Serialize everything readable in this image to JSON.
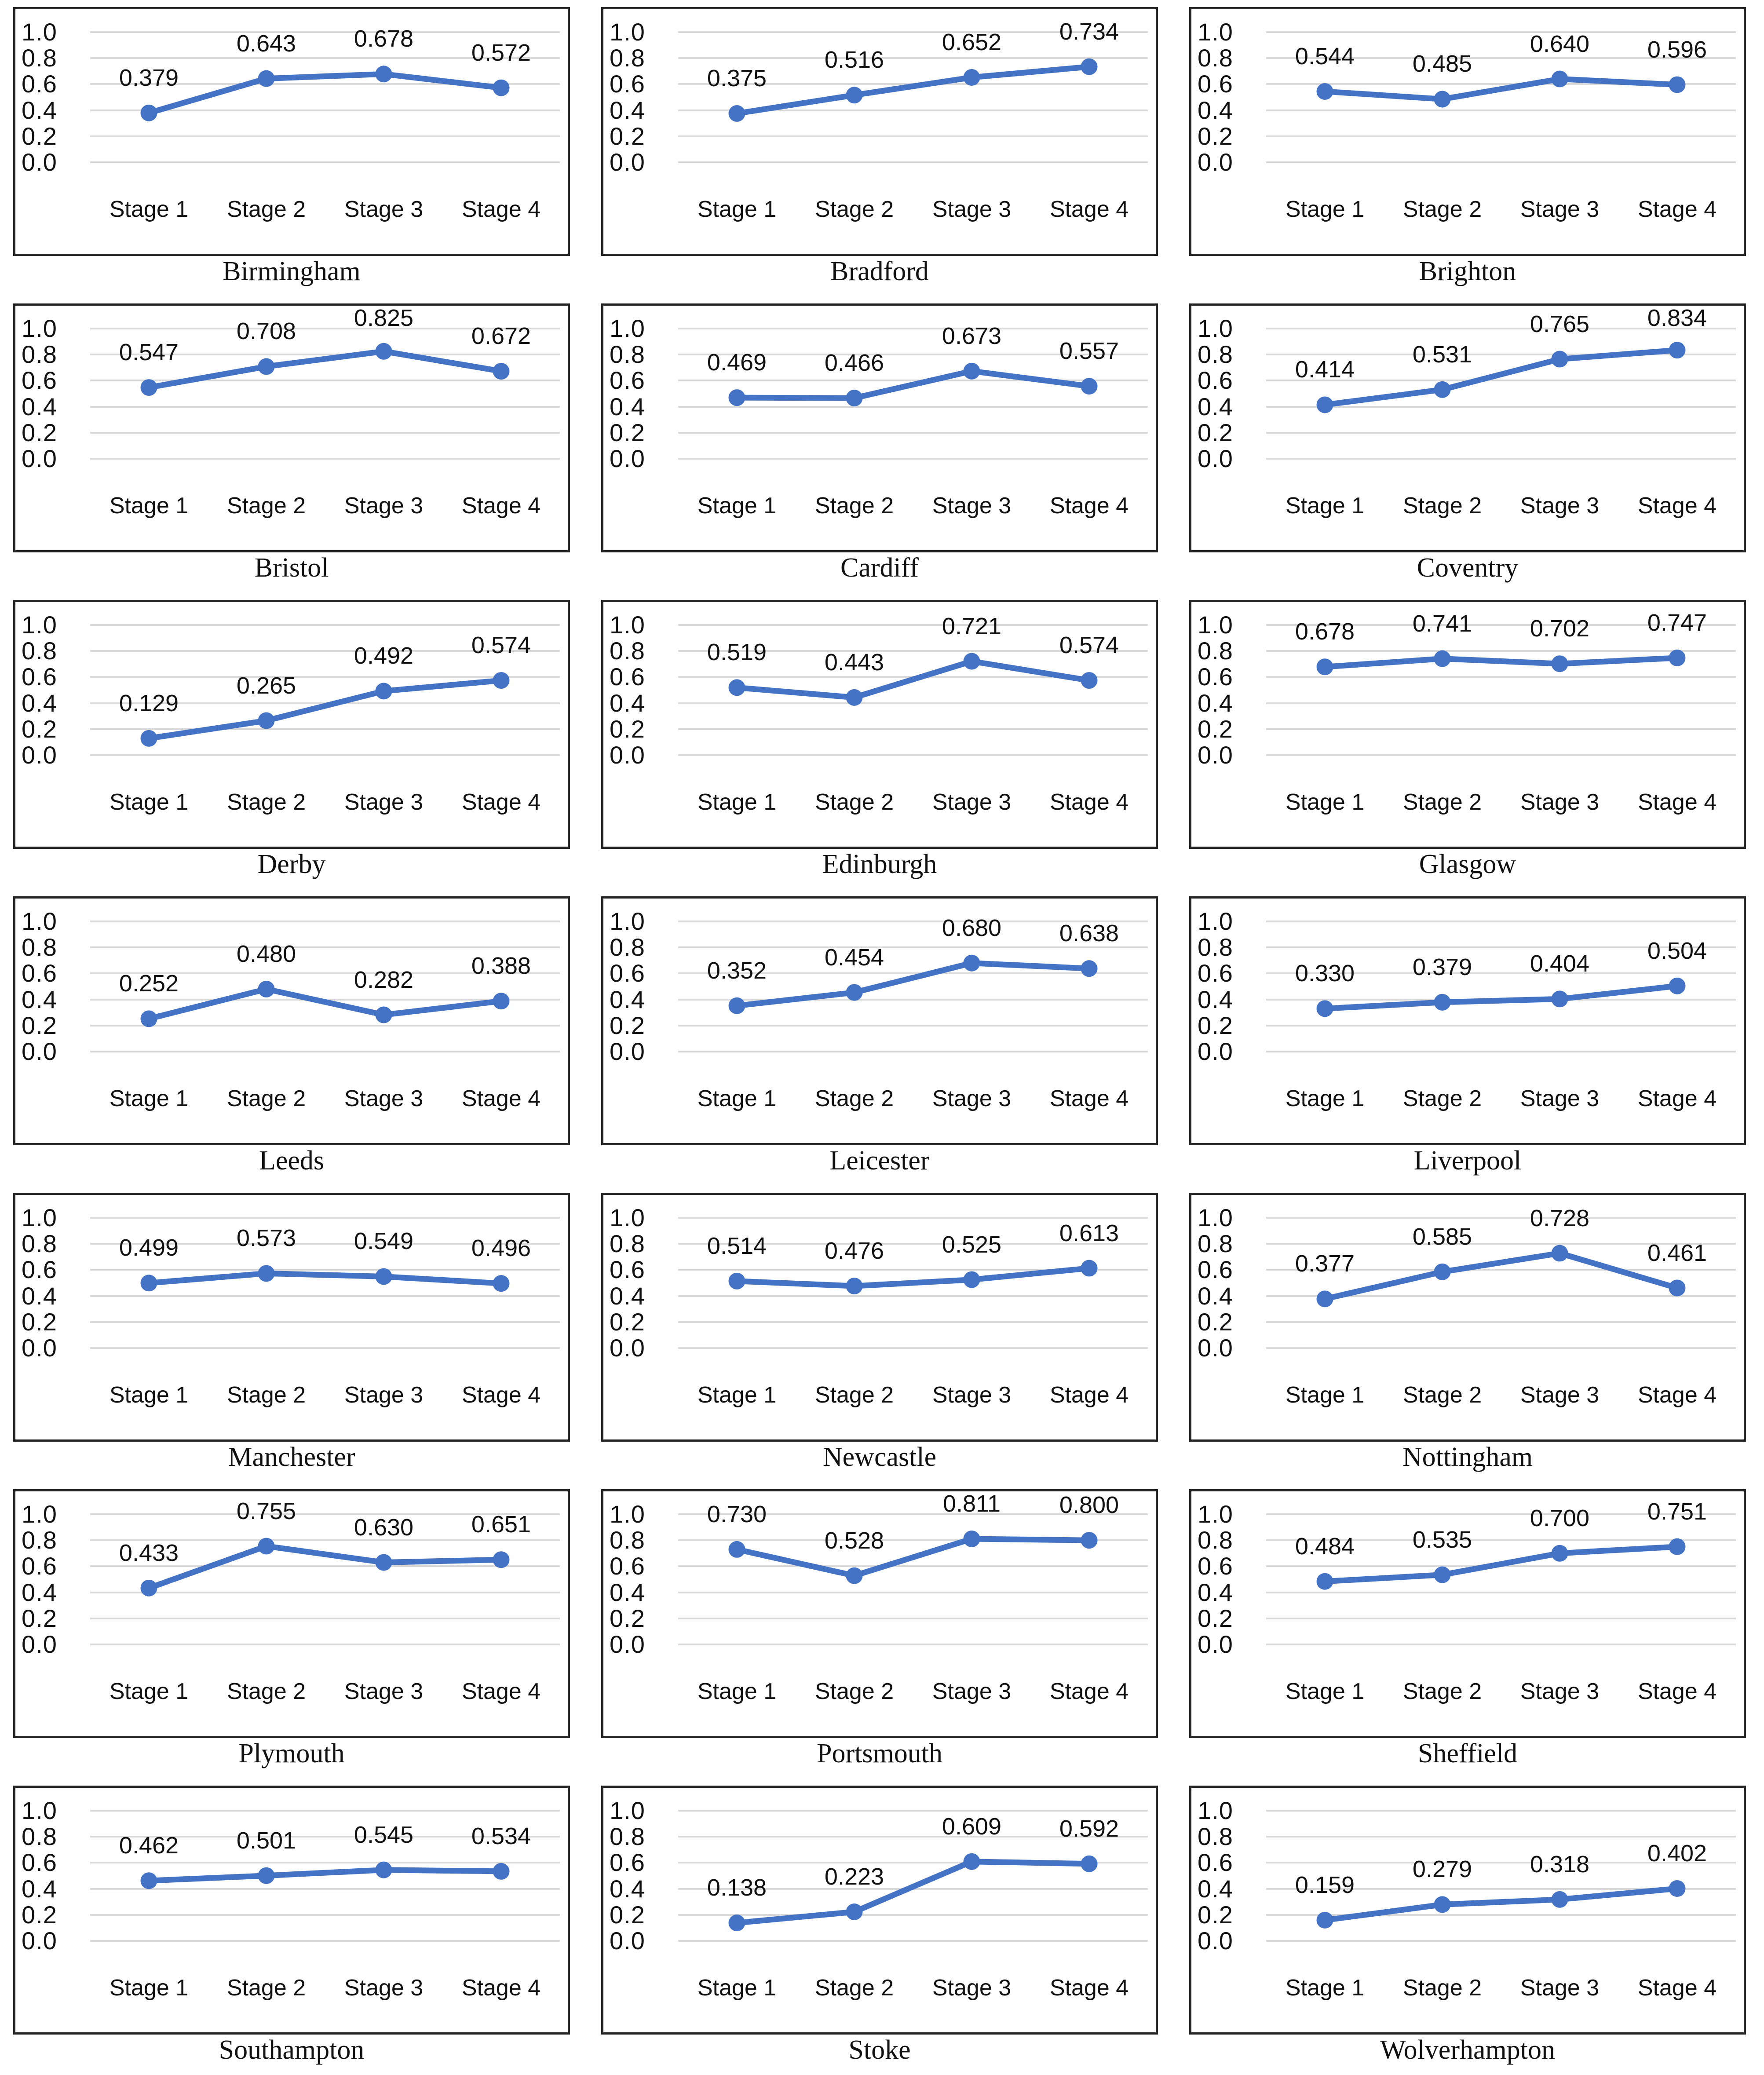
{
  "styles": {
    "line_color": "#4472c4",
    "marker_color": "#4472c4",
    "gridline_color": "#d9d9d9",
    "box_border_color": "#262626",
    "text_color": "#111111",
    "background": "#ffffff"
  },
  "chart_data": {
    "type": "line",
    "categories": [
      "Stage 1",
      "Stage 2",
      "Stage 3",
      "Stage 4"
    ],
    "ylim": [
      0.0,
      1.0
    ],
    "ytick_labels": [
      "1.0",
      "0.8",
      "0.6",
      "0.4",
      "0.2",
      "0.0"
    ],
    "grid": true,
    "legend": false,
    "data_label_format": "0.000",
    "series": [
      {
        "name": "Birmingham",
        "values": [
          0.379,
          0.643,
          0.678,
          0.572
        ]
      },
      {
        "name": "Bradford",
        "values": [
          0.375,
          0.516,
          0.652,
          0.734
        ]
      },
      {
        "name": "Brighton",
        "values": [
          0.544,
          0.485,
          0.64,
          0.596
        ]
      },
      {
        "name": "Bristol",
        "values": [
          0.547,
          0.708,
          0.825,
          0.672
        ]
      },
      {
        "name": "Cardiff",
        "values": [
          0.469,
          0.466,
          0.673,
          0.557
        ]
      },
      {
        "name": "Coventry",
        "values": [
          0.414,
          0.531,
          0.765,
          0.834
        ]
      },
      {
        "name": "Derby",
        "values": [
          0.129,
          0.265,
          0.492,
          0.574
        ]
      },
      {
        "name": "Edinburgh",
        "values": [
          0.519,
          0.443,
          0.721,
          0.574
        ]
      },
      {
        "name": "Glasgow",
        "values": [
          0.678,
          0.741,
          0.702,
          0.747
        ]
      },
      {
        "name": "Leeds",
        "values": [
          0.252,
          0.48,
          0.282,
          0.388
        ]
      },
      {
        "name": "Leicester",
        "values": [
          0.352,
          0.454,
          0.68,
          0.638
        ]
      },
      {
        "name": "Liverpool",
        "values": [
          0.33,
          0.379,
          0.404,
          0.504
        ]
      },
      {
        "name": "Manchester",
        "values": [
          0.499,
          0.573,
          0.549,
          0.496
        ]
      },
      {
        "name": "Newcastle",
        "values": [
          0.514,
          0.476,
          0.525,
          0.613
        ]
      },
      {
        "name": "Nottingham",
        "values": [
          0.377,
          0.585,
          0.728,
          0.461
        ]
      },
      {
        "name": "Plymouth",
        "values": [
          0.433,
          0.755,
          0.63,
          0.651
        ]
      },
      {
        "name": "Portsmouth",
        "values": [
          0.73,
          0.528,
          0.811,
          0.8
        ]
      },
      {
        "name": "Sheffield",
        "values": [
          0.484,
          0.535,
          0.7,
          0.751
        ]
      },
      {
        "name": "Southampton",
        "values": [
          0.462,
          0.501,
          0.545,
          0.534
        ]
      },
      {
        "name": "Stoke",
        "values": [
          0.138,
          0.223,
          0.609,
          0.592
        ]
      },
      {
        "name": "Wolverhampton",
        "values": [
          0.159,
          0.279,
          0.318,
          0.402
        ]
      }
    ]
  }
}
